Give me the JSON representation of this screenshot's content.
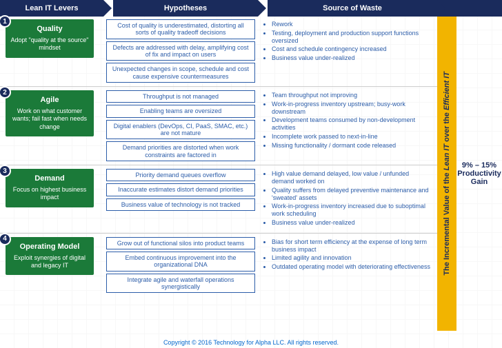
{
  "colors": {
    "header_bg": "#1a2b5c",
    "lever_bg": "#1b7a39",
    "hyp_border": "#2b5ca8",
    "text_blue": "#2b5ca8",
    "bar_yellow": "#f2b400"
  },
  "headers": {
    "levers": "Lean IT Levers",
    "hypotheses": "Hypotheses",
    "waste": "Source of Waste"
  },
  "levers": [
    {
      "num": "1",
      "title": "Quality",
      "sub": "Adopt \"quality at the source\" mindset",
      "hypotheses": [
        "Cost of quality is underestimated, distorting all sorts of quality tradeoff decisions",
        "Defects are addressed with delay, amplifying cost of fix and impact on users",
        "Unexpected changes in scope, schedule and cost cause expensive countermeasures"
      ],
      "waste": [
        "Rework",
        "Testing, deployment and production support functions oversized",
        "Cost and schedule contingency increased",
        "Business value under-realized"
      ]
    },
    {
      "num": "2",
      "title": "Agile",
      "sub": "Work on what customer wants; fail fast when needs change",
      "hypotheses": [
        "Throughput is not managed",
        "Enabling teams are oversized",
        "Digital enablers (DevOps, CI, PaaS, SMAC, etc.) are not mature",
        "Demand priorities are distorted when work constraints are factored in"
      ],
      "waste": [
        "Team throughput not improving",
        "Work-in-progress inventory upstream; busy-work downstream",
        "Development teams consumed by non-development activities",
        "Incomplete work passed to next-in-line",
        "Missing functionality / dormant code released"
      ]
    },
    {
      "num": "3",
      "title": "Demand",
      "sub": "Focus on highest business impact",
      "hypotheses": [
        "Priority demand queues overflow",
        "Inaccurate estimates distort demand priorities",
        "Business value of technology is not tracked"
      ],
      "waste": [
        "High value demand delayed, low value / unfunded demand worked on",
        "Quality suffers from delayed preventive maintenance and 'sweated' assets",
        "Work-in-progress inventory increased due to suboptimal work scheduling",
        "Business value under-realized"
      ]
    },
    {
      "num": "4",
      "title": "Operating Model",
      "sub": "Exploit synergies of digital and legacy IT",
      "hypotheses": [
        "Grow out of functional silos into product teams",
        "Embed continuous improvement into the organizational DNA",
        "Integrate agile and waterfall operations synergistically"
      ],
      "waste": [
        "Bias for short term efficiency at the expense of long term business impact",
        "Limited agility and innovation",
        "Outdated operating model with deteriorating effectiveness"
      ]
    }
  ],
  "vertical_bar": {
    "pre": "The Incremental Value of the ",
    "em1": "Lean IT",
    "mid": " over the ",
    "em2": "Efficient IT"
  },
  "gain": {
    "range": "9% – 15%",
    "label1": "Productivity",
    "label2": "Gain"
  },
  "footer": "Copyright © 2016 Technology for Alpha LLC. All rights reserved."
}
